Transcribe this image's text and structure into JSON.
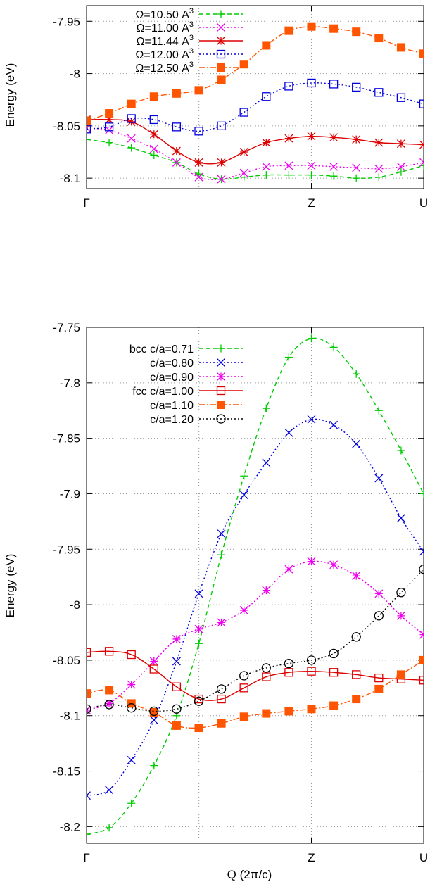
{
  "chart_data": [
    {
      "type": "line",
      "ylabel": "Energy (eV)",
      "xlabel": "",
      "ylim": [
        -8.11,
        -7.935
      ],
      "xlim": [
        0,
        1
      ],
      "y_ticks": [
        "-7.95",
        "-8",
        "-8.05",
        "-8.1"
      ],
      "y_tick_values": [
        -7.95,
        -8.0,
        -8.05,
        -8.1
      ],
      "x_ticks": [
        "Γ",
        "Z",
        "U"
      ],
      "x_tick_values": [
        0,
        0.667,
        1
      ],
      "grid": true,
      "legend_position": "top-left",
      "series": [
        {
          "name": "Ω=10.50 A",
          "name_sup": "3",
          "color": "#00cc00",
          "dash": "dashed",
          "marker": "plus",
          "x": [
            0,
            0.067,
            0.133,
            0.2,
            0.267,
            0.333,
            0.4,
            0.467,
            0.533,
            0.6,
            0.667,
            0.733,
            0.8,
            0.867,
            0.933,
            1
          ],
          "y": [
            -8.063,
            -8.066,
            -8.071,
            -8.078,
            -8.085,
            -8.096,
            -8.101,
            -8.099,
            -8.097,
            -8.097,
            -8.097,
            -8.098,
            -8.1,
            -8.099,
            -8.094,
            -8.088
          ]
        },
        {
          "name": "Ω=11.00 A",
          "name_sup": "3",
          "color": "#ee00ee",
          "dash": "dotted",
          "marker": "x",
          "x": [
            0,
            0.067,
            0.133,
            0.2,
            0.267,
            0.333,
            0.4,
            0.467,
            0.533,
            0.6,
            0.667,
            0.733,
            0.8,
            0.867,
            0.933,
            1
          ],
          "y": [
            -8.052,
            -8.054,
            -8.062,
            -8.072,
            -8.085,
            -8.099,
            -8.101,
            -8.095,
            -8.089,
            -8.088,
            -8.088,
            -8.089,
            -8.09,
            -8.091,
            -8.089,
            -8.085
          ]
        },
        {
          "name": "Ω=11.44 A",
          "name_sup": "3",
          "color": "#dd0000",
          "dash": "solid",
          "marker": "star",
          "x": [
            0,
            0.067,
            0.133,
            0.2,
            0.267,
            0.333,
            0.4,
            0.467,
            0.533,
            0.6,
            0.667,
            0.733,
            0.8,
            0.867,
            0.933,
            1
          ],
          "y": [
            -8.044,
            -8.044,
            -8.046,
            -8.058,
            -8.074,
            -8.085,
            -8.085,
            -8.075,
            -8.066,
            -8.062,
            -8.06,
            -8.061,
            -8.063,
            -8.066,
            -8.067,
            -8.068
          ]
        },
        {
          "name": "Ω=12.00 A",
          "name_sup": "3",
          "color": "#0000dd",
          "dash": "dotted",
          "marker": "square-open",
          "x": [
            0,
            0.067,
            0.133,
            0.2,
            0.267,
            0.333,
            0.4,
            0.467,
            0.533,
            0.6,
            0.667,
            0.733,
            0.8,
            0.867,
            0.933,
            1
          ],
          "y": [
            -8.053,
            -8.051,
            -8.043,
            -8.044,
            -8.051,
            -8.055,
            -8.05,
            -8.037,
            -8.022,
            -8.012,
            -8.009,
            -8.01,
            -8.013,
            -8.018,
            -8.023,
            -8.029
          ]
        },
        {
          "name": "Ω=12.50 A",
          "name_sup": "3",
          "color": "#ff5500",
          "dash": "dashdot",
          "marker": "square-filled",
          "x": [
            0,
            0.067,
            0.133,
            0.2,
            0.267,
            0.333,
            0.4,
            0.467,
            0.533,
            0.6,
            0.667,
            0.733,
            0.8,
            0.867,
            0.933,
            1
          ],
          "y": [
            -8.045,
            -8.038,
            -8.029,
            -8.022,
            -8.019,
            -8.016,
            -8.006,
            -7.991,
            -7.973,
            -7.959,
            -7.955,
            -7.957,
            -7.96,
            -7.966,
            -7.975,
            -7.981
          ]
        }
      ]
    },
    {
      "type": "line",
      "ylabel": "Energy (eV)",
      "xlabel": "Q (2π/c)",
      "ylim": [
        -8.215,
        -7.75
      ],
      "xlim": [
        0,
        1
      ],
      "y_ticks": [
        "-7.75",
        "-7.8",
        "-7.85",
        "-7.9",
        "-7.95",
        "-8",
        "-8.05",
        "-8.1",
        "-8.15",
        "-8.2"
      ],
      "y_tick_values": [
        -7.75,
        -7.8,
        -7.85,
        -7.9,
        -7.95,
        -8.0,
        -8.05,
        -8.1,
        -8.15,
        -8.2
      ],
      "x_ticks": [
        "Γ",
        "Z",
        "U"
      ],
      "x_tick_values": [
        0,
        0.667,
        1
      ],
      "grid": true,
      "legend_position": "top-left",
      "series": [
        {
          "name": "bcc c/a=0.71",
          "color": "#00cc00",
          "dash": "dashed",
          "marker": "plus",
          "x": [
            0,
            0.067,
            0.133,
            0.2,
            0.267,
            0.333,
            0.4,
            0.467,
            0.533,
            0.6,
            0.667,
            0.733,
            0.8,
            0.867,
            0.933,
            1
          ],
          "y": [
            -8.207,
            -8.201,
            -8.179,
            -8.145,
            -8.1,
            -8.035,
            -7.955,
            -7.884,
            -7.823,
            -7.777,
            -7.76,
            -7.768,
            -7.792,
            -7.825,
            -7.861,
            -7.9
          ]
        },
        {
          "name": "c/a=0.80",
          "color": "#0000dd",
          "dash": "dotted",
          "marker": "x",
          "x": [
            0,
            0.067,
            0.133,
            0.2,
            0.267,
            0.333,
            0.4,
            0.467,
            0.533,
            0.6,
            0.667,
            0.733,
            0.8,
            0.867,
            0.933,
            1
          ],
          "y": [
            -8.172,
            -8.167,
            -8.14,
            -8.104,
            -8.051,
            -7.99,
            -7.936,
            -7.901,
            -7.872,
            -7.845,
            -7.833,
            -7.838,
            -7.855,
            -7.886,
            -7.922,
            -7.952
          ]
        },
        {
          "name": "c/a=0.90",
          "color": "#ee00ee",
          "dash": "dotted",
          "marker": "star",
          "x": [
            0,
            0.067,
            0.133,
            0.2,
            0.267,
            0.333,
            0.4,
            0.467,
            0.533,
            0.6,
            0.667,
            0.733,
            0.8,
            0.867,
            0.933,
            1
          ],
          "y": [
            -8.095,
            -8.089,
            -8.072,
            -8.051,
            -8.031,
            -8.022,
            -8.016,
            -8.005,
            -7.987,
            -7.968,
            -7.961,
            -7.964,
            -7.974,
            -7.99,
            -8.01,
            -8.027
          ]
        },
        {
          "name": "fcc c/a=1.00",
          "color": "#dd0000",
          "dash": "solid",
          "marker": "square-open",
          "x": [
            0,
            0.067,
            0.133,
            0.2,
            0.267,
            0.333,
            0.4,
            0.467,
            0.533,
            0.6,
            0.667,
            0.733,
            0.8,
            0.867,
            0.933,
            1
          ],
          "y": [
            -8.043,
            -8.042,
            -8.045,
            -8.058,
            -8.074,
            -8.085,
            -8.085,
            -8.075,
            -8.065,
            -8.061,
            -8.06,
            -8.061,
            -8.063,
            -8.066,
            -8.067,
            -8.068
          ]
        },
        {
          "name": "c/a=1.10",
          "color": "#ff5500",
          "dash": "dashdot",
          "marker": "square-filled",
          "x": [
            0,
            0.067,
            0.133,
            0.2,
            0.267,
            0.333,
            0.4,
            0.467,
            0.533,
            0.6,
            0.667,
            0.733,
            0.8,
            0.867,
            0.933,
            1
          ],
          "y": [
            -8.08,
            -8.077,
            -8.089,
            -8.097,
            -8.109,
            -8.111,
            -8.107,
            -8.101,
            -8.098,
            -8.096,
            -8.094,
            -8.091,
            -8.085,
            -8.076,
            -8.063,
            -8.05
          ]
        },
        {
          "name": "c/a=1.20",
          "color": "#000000",
          "dash": "dotted",
          "marker": "circle-open",
          "x": [
            0,
            0.067,
            0.133,
            0.2,
            0.267,
            0.333,
            0.4,
            0.467,
            0.533,
            0.6,
            0.667,
            0.733,
            0.8,
            0.867,
            0.933,
            1
          ],
          "y": [
            -8.094,
            -8.09,
            -8.093,
            -8.096,
            -8.094,
            -8.087,
            -8.076,
            -8.064,
            -8.057,
            -8.053,
            -8.05,
            -8.044,
            -8.029,
            -8.01,
            -7.989,
            -7.968
          ]
        }
      ]
    }
  ]
}
